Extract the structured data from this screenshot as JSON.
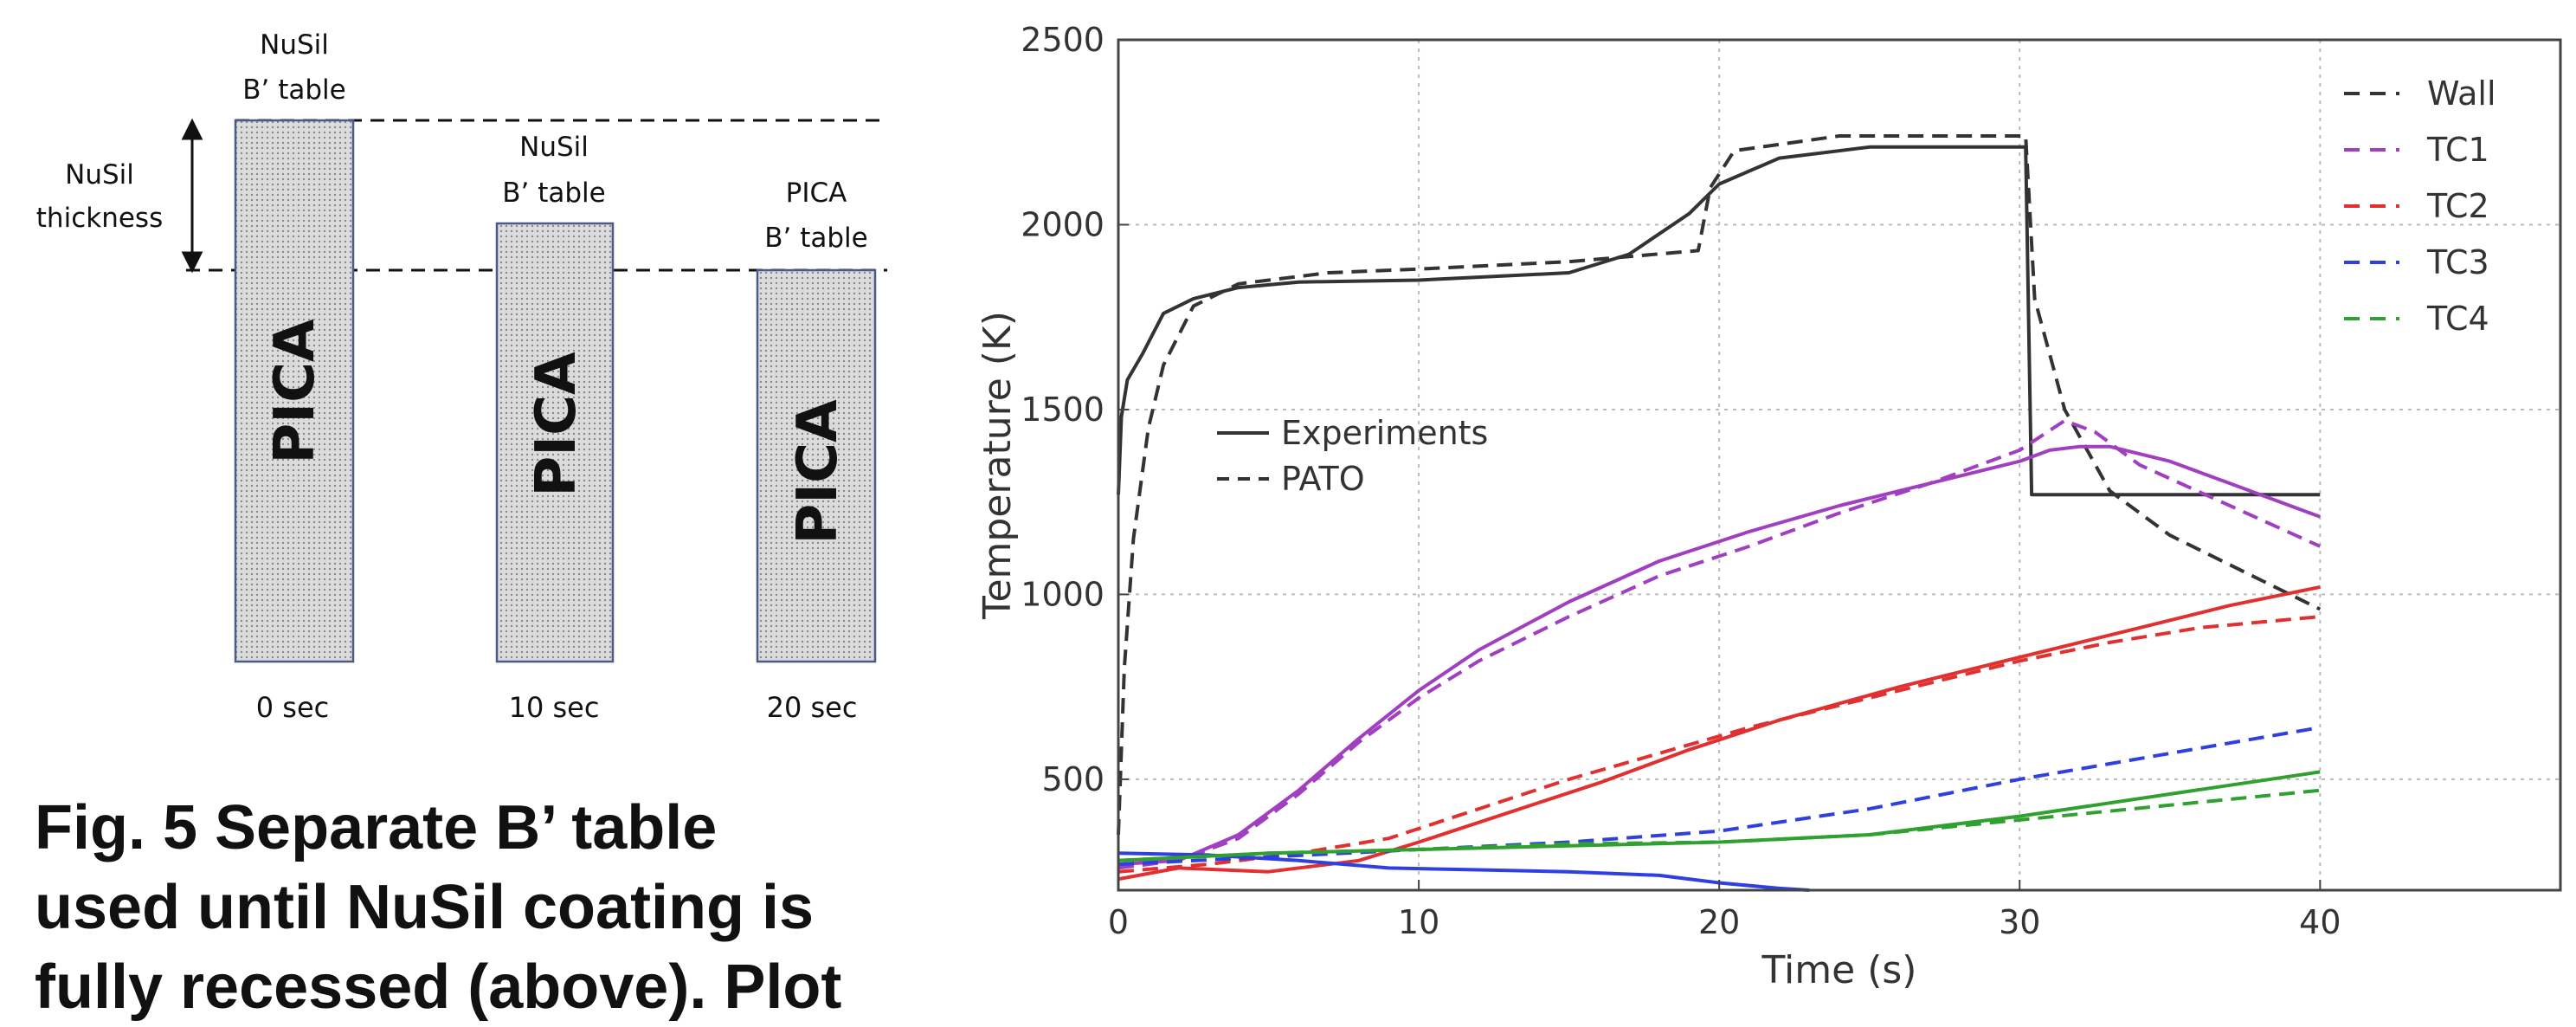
{
  "diagram": {
    "columns": [
      {
        "top_label": [
          "NuSil",
          "B’ table"
        ],
        "body_label": "PICA",
        "time_label": "0 sec"
      },
      {
        "top_label": [
          "NuSil",
          "B’ table"
        ],
        "body_label": "PICA",
        "time_label": "10 sec"
      },
      {
        "top_label": [
          "PICA",
          "B’ table"
        ],
        "body_label": "PICA",
        "time_label": "20 sec"
      }
    ],
    "thickness_label": [
      "NuSil",
      "thickness"
    ]
  },
  "caption": {
    "lines": [
      "Fig. 5 Separate B’ table",
      "used until NuSil coating is",
      "fully recessed (above). Plot"
    ]
  },
  "chart_data": {
    "type": "line",
    "title": "",
    "xlabel": "Time (s)",
    "ylabel": "Temperature (K)",
    "xlim": [
      0,
      48
    ],
    "ylim": [
      200,
      2500
    ],
    "xticks": [
      0,
      10,
      20,
      30,
      40
    ],
    "yticks": [
      500,
      1000,
      1500,
      2000,
      2500
    ],
    "grid": true,
    "legend": {
      "series_position": "top-right",
      "style_position": "center-left",
      "series": [
        {
          "name": "Wall",
          "color": "#333333"
        },
        {
          "name": "TC1",
          "color": "#a040c0"
        },
        {
          "name": "TC2",
          "color": "#e03030"
        },
        {
          "name": "TC3",
          "color": "#3040e0"
        },
        {
          "name": "TC4",
          "color": "#30a030"
        }
      ],
      "styles": [
        {
          "name": "Experiments",
          "dash": "solid"
        },
        {
          "name": "PATO",
          "dash": "dashed"
        }
      ]
    },
    "series": [
      {
        "key": "wall_exp",
        "color": "#333333",
        "dash": "solid",
        "points": [
          [
            0,
            1270
          ],
          [
            0.1,
            1480
          ],
          [
            0.3,
            1580
          ],
          [
            0.8,
            1650
          ],
          [
            1.5,
            1760
          ],
          [
            2.5,
            1800
          ],
          [
            4,
            1830
          ],
          [
            6,
            1845
          ],
          [
            10,
            1850
          ],
          [
            15,
            1870
          ],
          [
            17,
            1920
          ],
          [
            19,
            2030
          ],
          [
            20,
            2110
          ],
          [
            22,
            2180
          ],
          [
            25,
            2210
          ],
          [
            30,
            2210
          ],
          [
            30.2,
            2210
          ],
          [
            30.4,
            1270
          ],
          [
            40,
            1270
          ]
        ]
      },
      {
        "key": "wall_pato",
        "color": "#333333",
        "dash": "dashed",
        "points": [
          [
            0,
            350
          ],
          [
            0.2,
            800
          ],
          [
            0.5,
            1150
          ],
          [
            1,
            1450
          ],
          [
            1.5,
            1620
          ],
          [
            2.5,
            1780
          ],
          [
            4,
            1840
          ],
          [
            7,
            1870
          ],
          [
            10,
            1880
          ],
          [
            15,
            1900
          ],
          [
            19.3,
            1930
          ],
          [
            19.7,
            2100
          ],
          [
            20.5,
            2200
          ],
          [
            24,
            2240
          ],
          [
            30.2,
            2240
          ],
          [
            30.5,
            1800
          ],
          [
            31.5,
            1500
          ],
          [
            33,
            1280
          ],
          [
            35,
            1160
          ],
          [
            37,
            1080
          ],
          [
            40,
            960
          ]
        ]
      },
      {
        "key": "tc1_exp",
        "color": "#a040c0",
        "dash": "solid",
        "points": [
          [
            0,
            270
          ],
          [
            2,
            280
          ],
          [
            4,
            350
          ],
          [
            6,
            470
          ],
          [
            8,
            610
          ],
          [
            10,
            740
          ],
          [
            12,
            850
          ],
          [
            15,
            980
          ],
          [
            18,
            1090
          ],
          [
            21,
            1170
          ],
          [
            24,
            1240
          ],
          [
            27,
            1300
          ],
          [
            30,
            1360
          ],
          [
            31,
            1390
          ],
          [
            32,
            1400
          ],
          [
            33,
            1400
          ],
          [
            35,
            1360
          ],
          [
            37,
            1300
          ],
          [
            40,
            1210
          ]
        ]
      },
      {
        "key": "tc1_pato",
        "color": "#a040c0",
        "dash": "dashed",
        "points": [
          [
            0,
            260
          ],
          [
            2,
            280
          ],
          [
            4,
            340
          ],
          [
            6,
            460
          ],
          [
            8,
            600
          ],
          [
            10,
            720
          ],
          [
            12,
            820
          ],
          [
            15,
            940
          ],
          [
            18,
            1050
          ],
          [
            21,
            1130
          ],
          [
            24,
            1220
          ],
          [
            27,
            1300
          ],
          [
            30,
            1390
          ],
          [
            31.5,
            1470
          ],
          [
            32.5,
            1440
          ],
          [
            34,
            1350
          ],
          [
            37,
            1240
          ],
          [
            40,
            1130
          ]
        ]
      },
      {
        "key": "tc2_exp",
        "color": "#e03030",
        "dash": "solid",
        "points": [
          [
            0,
            230
          ],
          [
            2,
            260
          ],
          [
            5,
            250
          ],
          [
            8,
            280
          ],
          [
            10,
            330
          ],
          [
            13,
            410
          ],
          [
            16,
            490
          ],
          [
            19,
            580
          ],
          [
            22,
            660
          ],
          [
            26,
            750
          ],
          [
            30,
            830
          ],
          [
            34,
            910
          ],
          [
            37,
            970
          ],
          [
            40,
            1020
          ]
        ]
      },
      {
        "key": "tc2_pato",
        "color": "#e03030",
        "dash": "dashed",
        "points": [
          [
            0,
            250
          ],
          [
            3,
            270
          ],
          [
            6,
            300
          ],
          [
            9,
            340
          ],
          [
            12,
            420
          ],
          [
            15,
            500
          ],
          [
            18,
            570
          ],
          [
            21,
            640
          ],
          [
            24,
            700
          ],
          [
            27,
            760
          ],
          [
            30,
            820
          ],
          [
            33,
            870
          ],
          [
            36,
            910
          ],
          [
            40,
            940
          ]
        ]
      },
      {
        "key": "tc3_exp",
        "color": "#3040e0",
        "dash": "solid",
        "points": [
          [
            0,
            300
          ],
          [
            3,
            295
          ],
          [
            6,
            280
          ],
          [
            9,
            260
          ],
          [
            12,
            255
          ],
          [
            15,
            250
          ],
          [
            18,
            240
          ],
          [
            20,
            220
          ],
          [
            22,
            205
          ],
          [
            23,
            200
          ]
        ]
      },
      {
        "key": "tc3_pato",
        "color": "#3040e0",
        "dash": "dashed",
        "points": [
          [
            0,
            270
          ],
          [
            5,
            290
          ],
          [
            10,
            310
          ],
          [
            15,
            330
          ],
          [
            20,
            360
          ],
          [
            25,
            420
          ],
          [
            30,
            500
          ],
          [
            35,
            570
          ],
          [
            40,
            640
          ]
        ]
      },
      {
        "key": "tc4_exp",
        "color": "#30a030",
        "dash": "solid",
        "points": [
          [
            0,
            280
          ],
          [
            5,
            300
          ],
          [
            10,
            310
          ],
          [
            15,
            320
          ],
          [
            20,
            330
          ],
          [
            25,
            350
          ],
          [
            30,
            400
          ],
          [
            35,
            460
          ],
          [
            40,
            520
          ]
        ]
      },
      {
        "key": "tc4_pato",
        "color": "#30a030",
        "dash": "dashed",
        "points": [
          [
            0,
            280
          ],
          [
            5,
            300
          ],
          [
            10,
            310
          ],
          [
            15,
            325
          ],
          [
            20,
            330
          ],
          [
            25,
            350
          ],
          [
            30,
            390
          ],
          [
            35,
            430
          ],
          [
            40,
            470
          ]
        ]
      }
    ]
  }
}
